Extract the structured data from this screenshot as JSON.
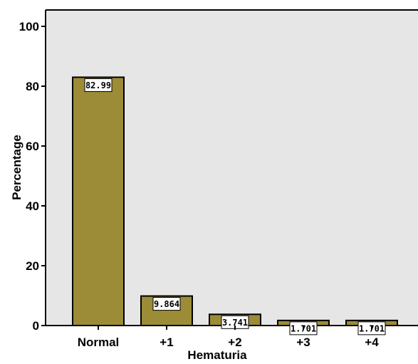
{
  "chart_data": {
    "type": "bar",
    "xlabel": "Hematuria",
    "ylabel": "Percentage",
    "categories": [
      "Normal",
      "+1",
      "+2",
      "+3",
      "+4"
    ],
    "values": [
      82.99,
      9.864,
      3.741,
      1.701,
      1.701
    ],
    "data_labels": [
      "82.99",
      "9.864",
      "3.741",
      "1.701",
      "1.701"
    ],
    "ylim": [
      0,
      100
    ],
    "yticks": [
      0,
      20,
      40,
      60,
      80,
      100
    ],
    "ytick_labels": [
      "0",
      "20",
      "40",
      "60",
      "80",
      "100"
    ],
    "grid": false,
    "colors": {
      "bar_fill": "#9c8b37",
      "bar_stroke": "#000000",
      "plot_background": "#e6e6e6",
      "label_box": "#ffffff"
    }
  }
}
